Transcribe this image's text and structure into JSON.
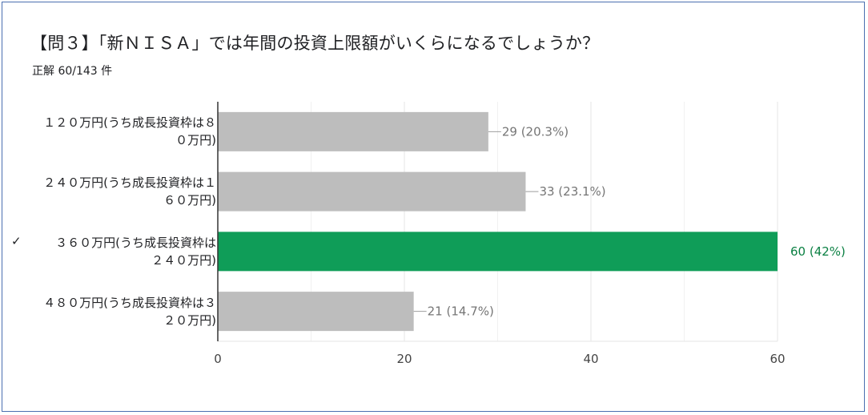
{
  "title": "【問３】「新ＮＩＳＡ」では年間の投資上限額がいくらになるでしょうか？",
  "subtitle": "正解 60/143 件",
  "colors": {
    "bar_default": "#bdbdbd",
    "bar_correct": "#0f9d58",
    "label_default": "#757575",
    "label_correct": "#0b8043"
  },
  "chart_data": {
    "type": "bar",
    "orientation": "horizontal",
    "categories": [
      [
        "１２０万円(うち成長投資枠は８",
        "０万円)"
      ],
      [
        "２４０万円(うち成長投資枠は１",
        "６０万円)"
      ],
      [
        "３６０万円(うち成長投資枠は",
        "２４０万円)"
      ],
      [
        "４８０万円(うち成長投資枠は３",
        "２０万円)"
      ]
    ],
    "values": [
      29,
      33,
      60,
      21
    ],
    "data_labels": [
      "29 (20.3%)",
      "33 (23.1%)",
      "60 (42%)",
      "21 (14.7%)"
    ],
    "correct_index": 2,
    "correct_icon": "checkmark-icon",
    "xlim": [
      0,
      60
    ],
    "xticks": [
      0,
      20,
      40,
      60
    ],
    "grid": true
  }
}
